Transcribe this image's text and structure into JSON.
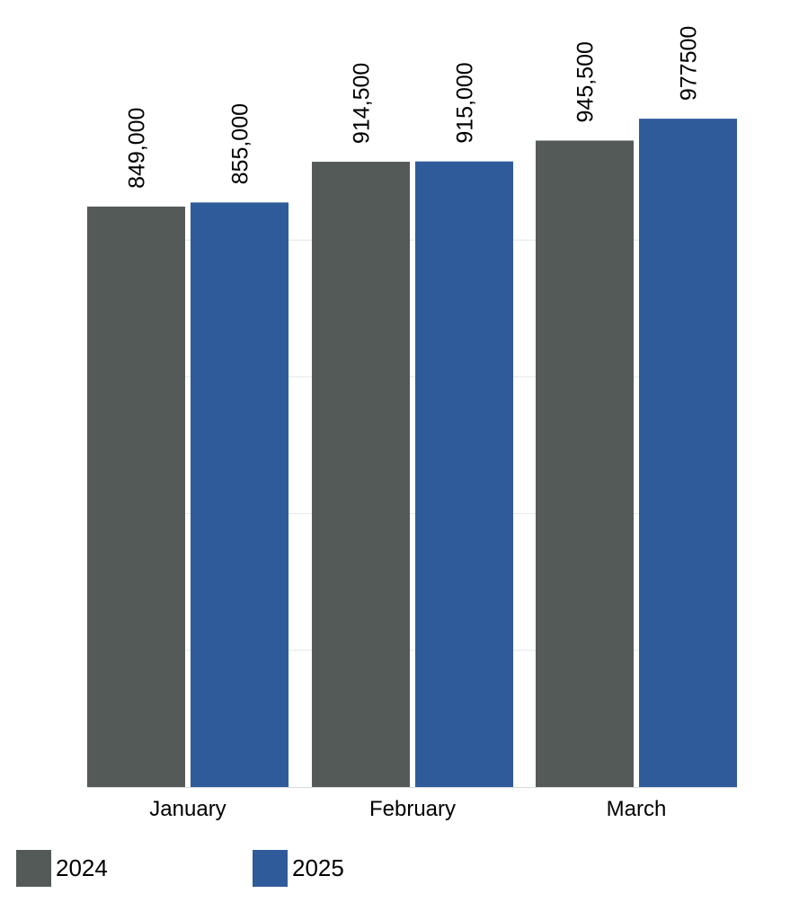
{
  "chart_data": {
    "type": "bar",
    "categories": [
      "January",
      "February",
      "March"
    ],
    "series": [
      {
        "name": "2024",
        "values": [
          849000,
          914500,
          945500
        ],
        "labels": [
          "849,000",
          "914,500",
          "945,500"
        ],
        "color": "#535a58"
      },
      {
        "name": "2025",
        "values": [
          855000,
          915000,
          977500
        ],
        "labels": [
          "855,000",
          "915,000",
          "977500"
        ],
        "color": "#2f5b9b"
      }
    ],
    "ylim": [
      0,
      1000000
    ],
    "grid": true,
    "gridline_color": "#e6e6e6",
    "legend_position": "bottom-left"
  }
}
